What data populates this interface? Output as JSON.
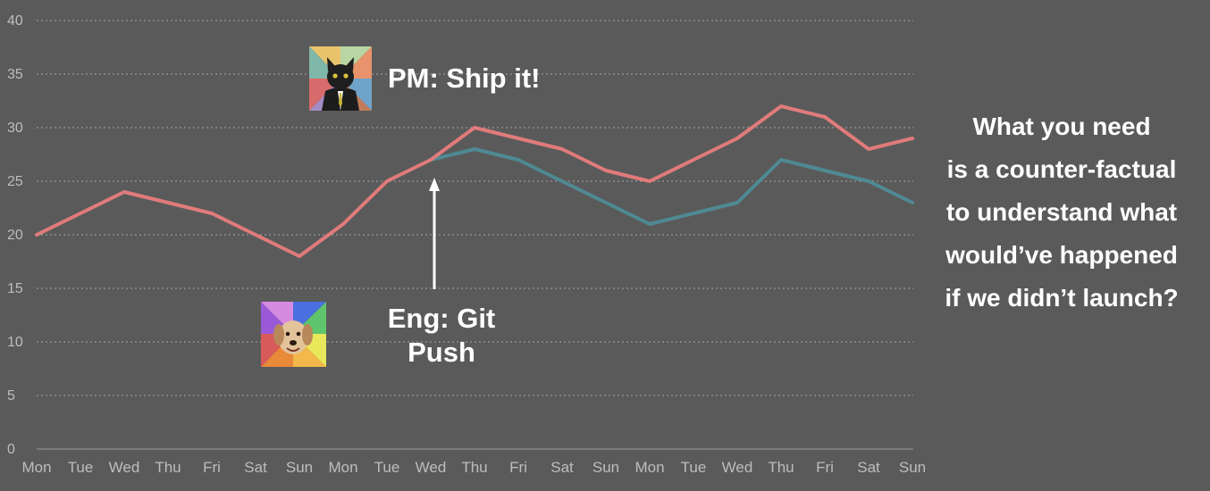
{
  "chart_data": {
    "type": "line",
    "categories": [
      "Mon",
      "Tue",
      "Wed",
      "Thu",
      "Fri",
      "Sat",
      "Sun",
      "Mon",
      "Tue",
      "Wed",
      "Thu",
      "Fri",
      "Sat",
      "Sun",
      "Mon",
      "Tue",
      "Wed",
      "Thu",
      "Fri",
      "Sat",
      "Sun"
    ],
    "ylim": [
      0,
      40
    ],
    "yticks": [
      "0",
      "5",
      "10",
      "15",
      "20",
      "25",
      "30",
      "35",
      "40"
    ],
    "grid": true,
    "series": [
      {
        "color": "#e07b7b",
        "values": [
          20,
          22,
          24,
          23,
          22,
          20,
          18,
          21,
          25,
          27,
          30,
          29,
          28,
          26,
          25,
          27,
          29,
          32,
          31,
          28,
          29
        ]
      },
      {
        "color": "#4f8a93",
        "values": [
          null,
          null,
          null,
          null,
          null,
          null,
          null,
          null,
          null,
          27,
          28,
          27,
          25,
          23,
          21,
          22,
          23,
          27,
          26,
          25,
          23
        ]
      }
    ]
  },
  "annotations": {
    "pm": "PM: Ship it!",
    "eng_line1": "Eng: Git",
    "eng_line2": "Push",
    "side_text": [
      "What you need",
      "is a counter-factual",
      "to understand what",
      "would’ve happened",
      "if we didn’t launch?"
    ]
  },
  "icons": {
    "pm_avatar": "business-cat-icon",
    "eng_avatar": "advice-dog-icon"
  }
}
